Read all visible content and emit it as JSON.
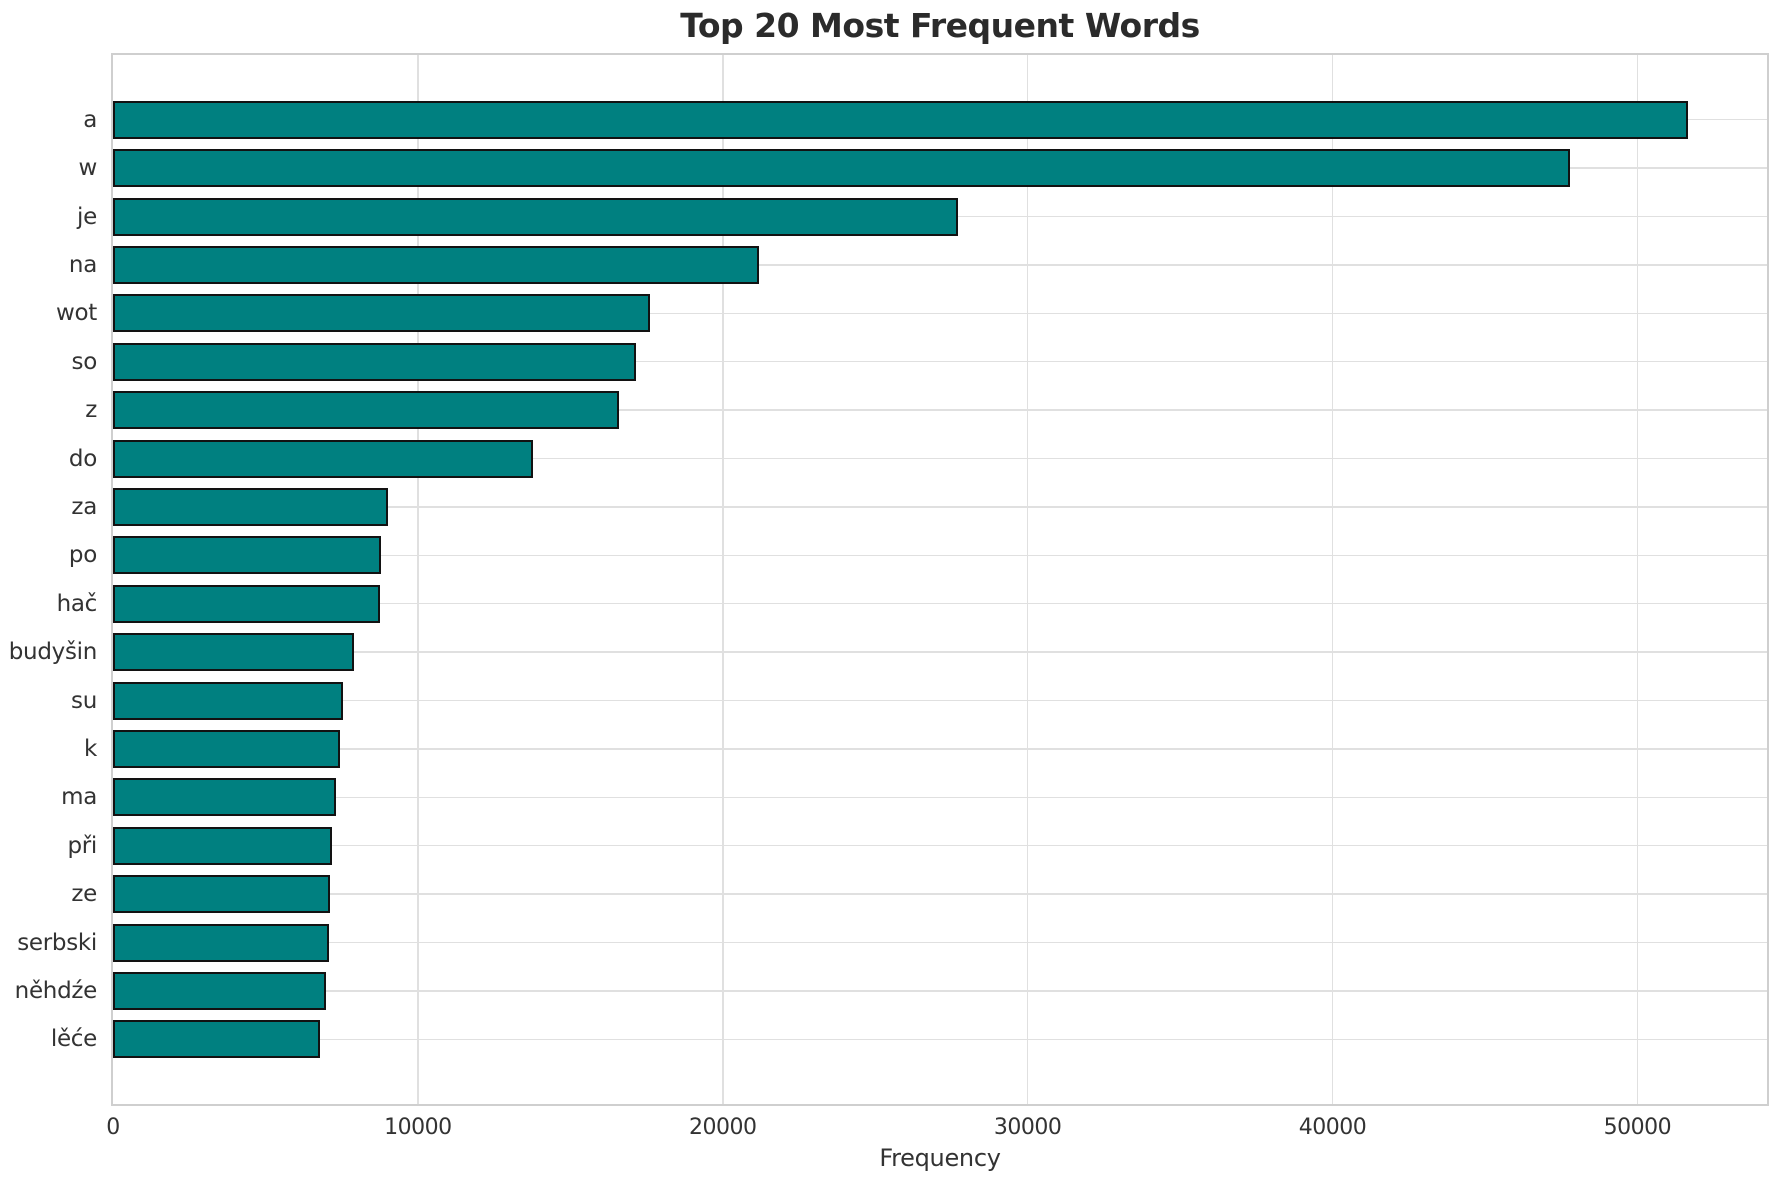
{
  "figure": {
    "background": "#ffffff"
  },
  "chart_data": {
    "type": "bar",
    "orientation": "horizontal",
    "title": "Top 20 Most Frequent Words",
    "xlabel": "Frequency",
    "ylabel": "",
    "categories": [
      "a",
      "w",
      "je",
      "na",
      "wot",
      "so",
      "z",
      "do",
      "za",
      "po",
      "hač",
      "budyšin",
      "su",
      "k",
      "ma",
      "při",
      "ze",
      "serbski",
      "něhdźe",
      "lěće"
    ],
    "values": [
      51650,
      47800,
      27700,
      21200,
      17600,
      17150,
      16600,
      13780,
      9030,
      8800,
      8770,
      7890,
      7560,
      7460,
      7300,
      7170,
      7130,
      7070,
      7000,
      6800
    ],
    "xticks": [
      0,
      10000,
      20000,
      30000,
      40000,
      50000
    ],
    "xlim": [
      0,
      54250
    ],
    "grid": true,
    "legend": false,
    "style": {
      "bar_color": "#008080",
      "bar_edge_color": "#121212",
      "grid_color": "#e0e0e0",
      "spine_color": "#cfcfcf",
      "text_color": "#333333",
      "title_color": "#2b2b2b"
    }
  }
}
